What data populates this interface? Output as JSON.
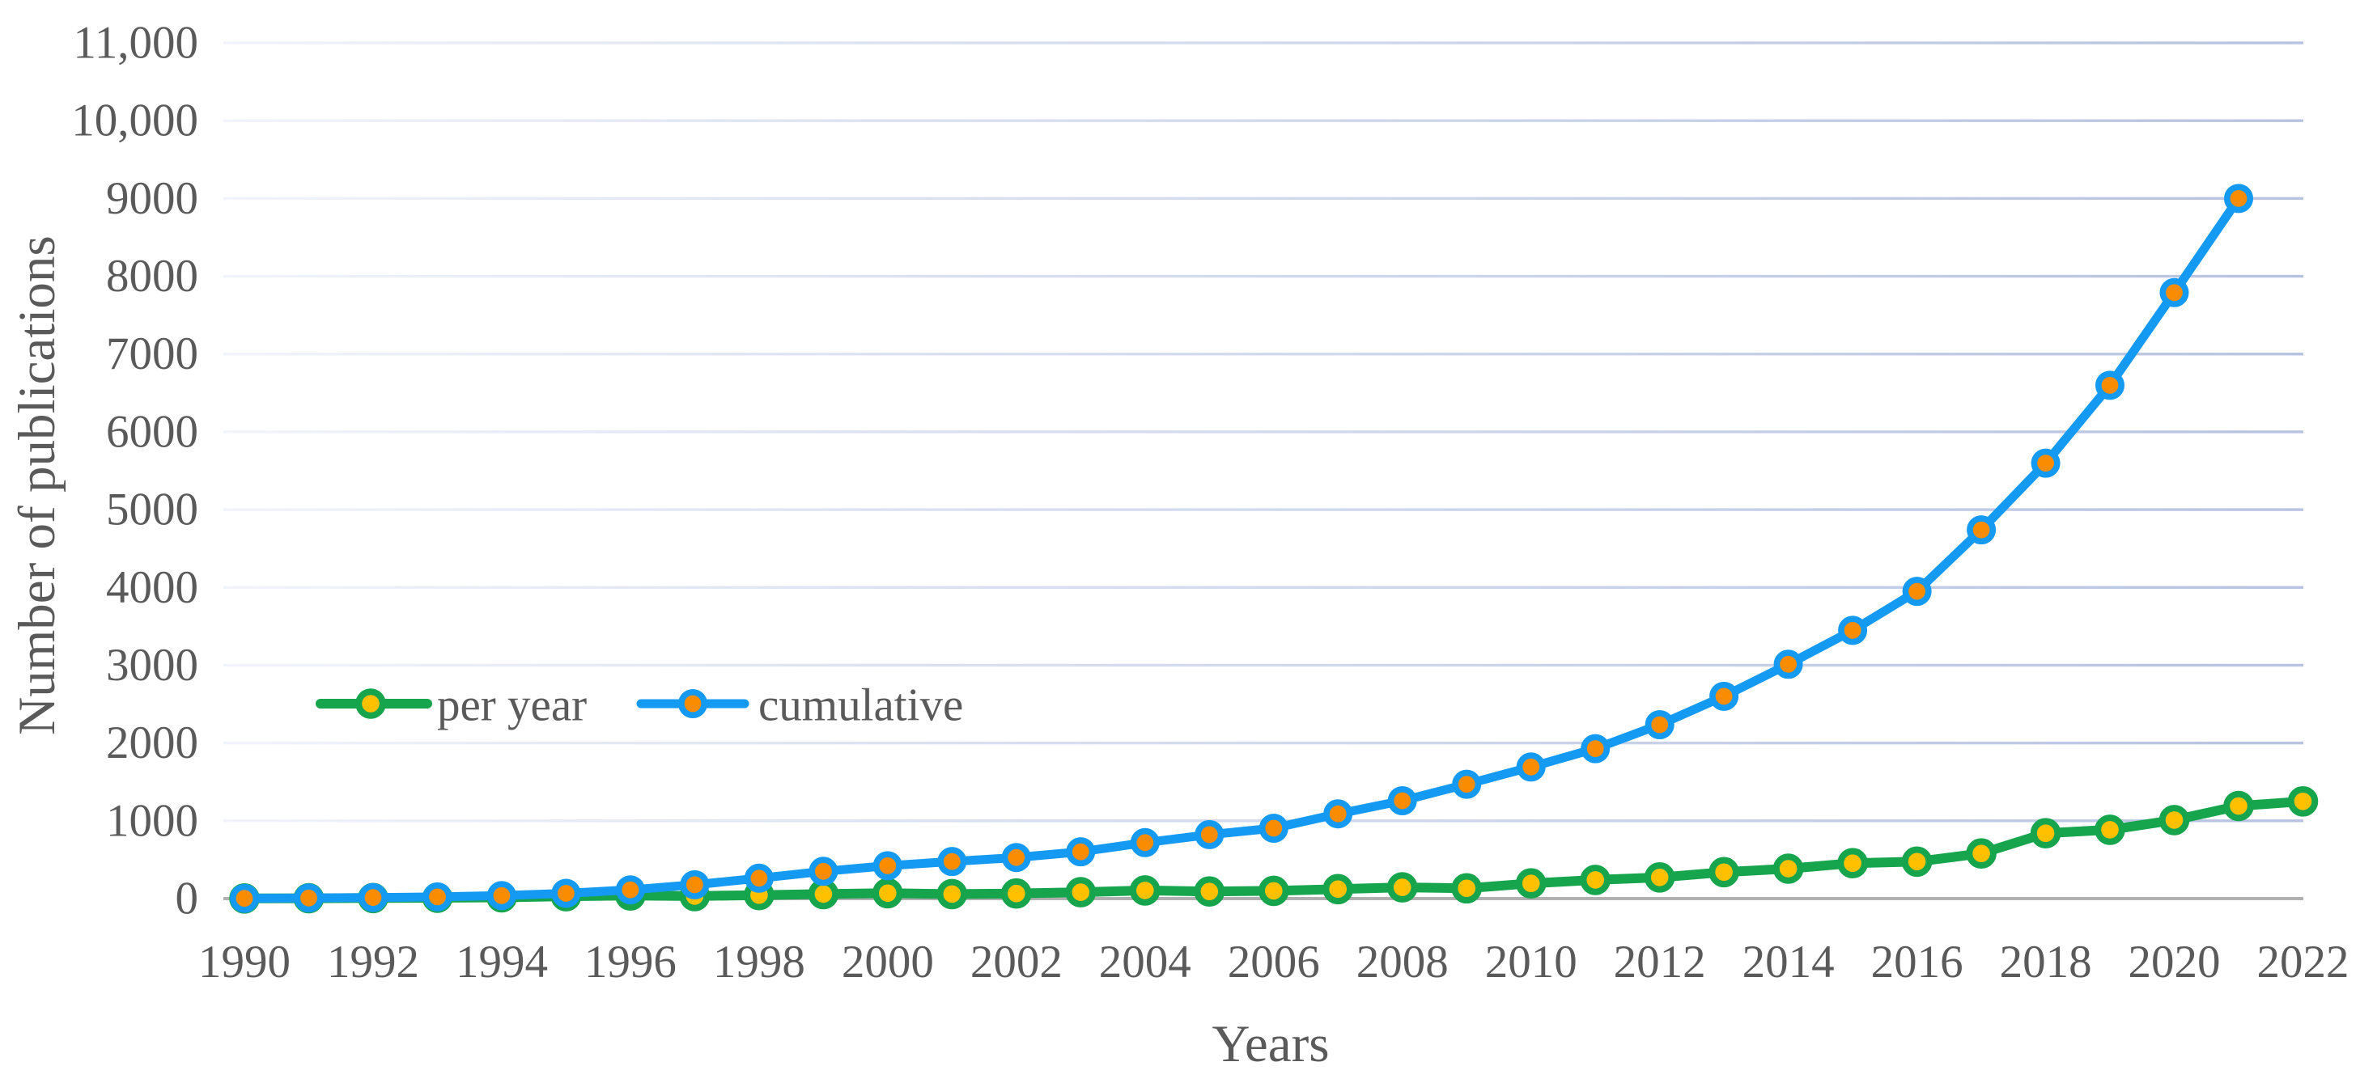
{
  "chart_data": {
    "type": "line",
    "title": "",
    "xlabel": "Years",
    "ylabel": "Number of publications",
    "x": [
      1990,
      1991,
      1992,
      1993,
      1994,
      1995,
      1996,
      1997,
      1998,
      1999,
      2000,
      2001,
      2002,
      2003,
      2004,
      2005,
      2006,
      2007,
      2008,
      2009,
      2010,
      2011,
      2012,
      2013,
      2014,
      2015,
      2016,
      2017,
      2018,
      2019,
      2020,
      2021,
      2022
    ],
    "x_tick_labels": [
      "1990",
      "1992",
      "1994",
      "1996",
      "1998",
      "2000",
      "2002",
      "2004",
      "2006",
      "2008",
      "2010",
      "2012",
      "2014",
      "2016",
      "2018",
      "2020",
      "2022"
    ],
    "y_tick_labels": [
      "0",
      "1000",
      "2000",
      "3000",
      "4000",
      "5000",
      "6000",
      "7000",
      "8000",
      "9000",
      "10,000",
      "11,000"
    ],
    "ylim": [
      0,
      11000
    ],
    "y_tick_step": 1000,
    "grid": "horizontal",
    "legend_position": "inside-left-middle",
    "series": [
      {
        "name": "per year",
        "line_color": "#16A44C",
        "marker_fill": "#FFC000",
        "values": [
          2,
          4,
          7,
          10,
          16,
          30,
          40,
          32,
          45,
          58,
          70,
          58,
          66,
          82,
          105,
          92,
          100,
          122,
          145,
          132,
          195,
          240,
          272,
          340,
          385,
          455,
          475,
          580,
          840,
          885,
          1010,
          1190,
          1250
        ]
      },
      {
        "name": "cumulative",
        "line_color": "#149AF2",
        "marker_fill": "#F98C00",
        "values": [
          3,
          7,
          13,
          22,
          38,
          68,
          112,
          178,
          262,
          350,
          422,
          477,
          528,
          602,
          720,
          822,
          905,
          1090,
          1258,
          1470,
          1692,
          1928,
          2235,
          2600,
          3012,
          3448,
          3950,
          4740,
          5598,
          6598,
          7790,
          9000,
          null
        ]
      }
    ],
    "colors": {
      "gridline_left": "#F1F4FA",
      "gridline_right": "#B7C3E1",
      "axis_line": "#B0B0B0",
      "text": "#5A5A5A",
      "background": "#FFFFFF"
    }
  }
}
